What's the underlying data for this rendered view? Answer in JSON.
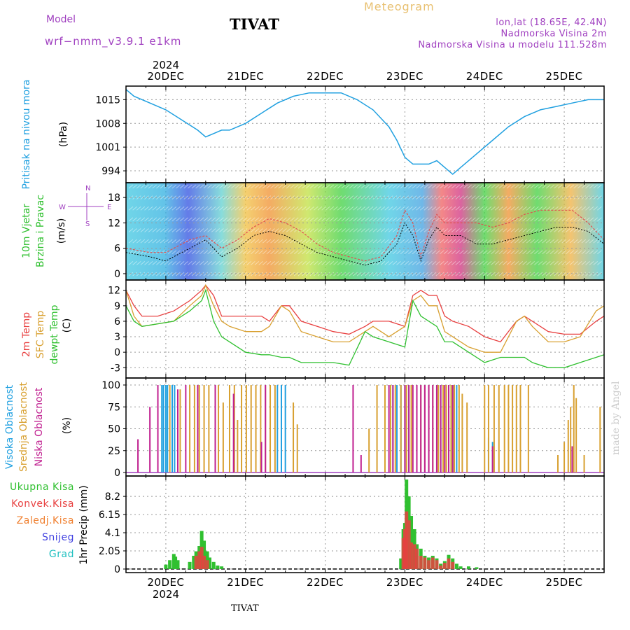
{
  "header": {
    "title": "TIVAT",
    "model_label": "Model",
    "model_name": "wrf−nmm_v3.9.1  e1km",
    "meteogram_label": "Meteogram",
    "info": [
      "lon,lat (18.65E, 42.4N)",
      "Nadmorska Visina 2m",
      "Nadmorska Visina u modelu 111.528m"
    ],
    "year": "2024"
  },
  "footer": {
    "station": "TIVAT",
    "watermark": "made by Angel"
  },
  "colors": {
    "pressure": "#20a0e0",
    "temp2m": "#e84040",
    "sfc": "#d8a030",
    "dewpt": "#30c030",
    "high": "#20a0e0",
    "mid": "#d8a030",
    "low": "#c02090",
    "precip": "#30c030",
    "konv": "#e84040",
    "label_pressure": "#20a0e0",
    "label_cloud_high": "#20a0e0",
    "label_cloud_mid": "#d8a030",
    "label_cloud_low": "#c02090",
    "label_snow": "#4040e0",
    "label_grad": "#20c0c0",
    "label_zaledj": "#f08030"
  },
  "chart_data": [
    {
      "type": "line",
      "panel": "pressure",
      "ylabel_name": "Pritisak na nivou mora",
      "ylabel_unit": "(hPa)",
      "yticks": [
        994,
        1001,
        1008,
        1015
      ],
      "ylim": [
        990.5,
        1019
      ],
      "x_categories": [
        "20DEC",
        "21DEC",
        "22DEC",
        "23DEC",
        "24DEC",
        "25DEC"
      ],
      "xlim": [
        -0.5,
        5.5
      ],
      "series": [
        {
          "x": [
            -0.5,
            -0.4,
            -0.2,
            0,
            0.2,
            0.4,
            0.5,
            0.6,
            0.7,
            0.8,
            1.0,
            1.2,
            1.4,
            1.6,
            1.8,
            2.0,
            2.2,
            2.4,
            2.6,
            2.8,
            2.9,
            3.0,
            3.1,
            3.2,
            3.3,
            3.4,
            3.5,
            3.6,
            3.7,
            3.9,
            4.1,
            4.3,
            4.5,
            4.7,
            4.9,
            5.1,
            5.3,
            5.5
          ],
          "values": [
            1018,
            1016,
            1014,
            1012,
            1009,
            1006,
            1004,
            1005,
            1006,
            1006,
            1008,
            1011,
            1014,
            1016,
            1017,
            1017,
            1017,
            1015,
            1012,
            1007,
            1003,
            998,
            996,
            996,
            996,
            997,
            995,
            993,
            995,
            999,
            1003,
            1007,
            1010,
            1012,
            1013,
            1014,
            1015,
            1015
          ]
        }
      ]
    },
    {
      "type": "line",
      "panel": "wind",
      "ylabel_name": "10m Vjetar",
      "ylabel_name2": "Brzina i Pravac",
      "ylabel_unit": "(m/s)",
      "compass": {
        "n": "N",
        "e": "E",
        "s": "S",
        "w": "W"
      },
      "yticks": [
        0,
        6,
        12,
        18
      ],
      "ylim": [
        -1.5,
        21.5
      ],
      "xlim": [
        -0.5,
        5.5
      ],
      "series": [
        {
          "style": "dashed-red",
          "x": [
            -0.5,
            -0.2,
            0,
            0.3,
            0.5,
            0.7,
            0.9,
            1.1,
            1.3,
            1.5,
            1.7,
            1.9,
            2.1,
            2.3,
            2.5,
            2.7,
            2.9,
            3.0,
            3.1,
            3.2,
            3.3,
            3.4,
            3.5,
            3.7,
            3.9,
            4.1,
            4.3,
            4.5,
            4.7,
            4.9,
            5.1,
            5.3,
            5.5
          ],
          "values": [
            6,
            5,
            5,
            8,
            9,
            6,
            8,
            11,
            13,
            12,
            10,
            7,
            5,
            4,
            3,
            4,
            9,
            15,
            12,
            4,
            10,
            14,
            12,
            12,
            12,
            11,
            12,
            14,
            15,
            15,
            15,
            12,
            8
          ]
        },
        {
          "style": "dotted-black",
          "x": [
            -0.5,
            -0.2,
            0,
            0.3,
            0.5,
            0.7,
            0.9,
            1.1,
            1.3,
            1.5,
            1.7,
            1.9,
            2.1,
            2.3,
            2.5,
            2.7,
            2.9,
            3.0,
            3.1,
            3.2,
            3.3,
            3.4,
            3.5,
            3.7,
            3.9,
            4.1,
            4.3,
            4.5,
            4.7,
            4.9,
            5.1,
            5.3,
            5.5
          ],
          "values": [
            5,
            4,
            3,
            6,
            8,
            4,
            6,
            9,
            10,
            9,
            7,
            5,
            4,
            3,
            2,
            3,
            7,
            12,
            9,
            3,
            8,
            11,
            9,
            9,
            7,
            7,
            8,
            9,
            10,
            11,
            11,
            10,
            7
          ]
        }
      ]
    },
    {
      "type": "line",
      "panel": "temperature",
      "ylabel_names": [
        "2m Temp",
        "SFC Temp",
        "dewpt Temp"
      ],
      "ylabel_unit": "(C)",
      "yticks": [
        -3,
        0,
        3,
        6,
        9,
        12
      ],
      "ylim": [
        -5,
        14
      ],
      "xlim": [
        -0.5,
        5.5
      ],
      "series": [
        {
          "name": "2m Temp",
          "x": [
            -0.5,
            -0.4,
            -0.3,
            -0.1,
            0.1,
            0.3,
            0.45,
            0.5,
            0.6,
            0.7,
            0.8,
            1.0,
            1.2,
            1.3,
            1.45,
            1.55,
            1.7,
            1.9,
            2.1,
            2.3,
            2.5,
            2.6,
            2.8,
            3.0,
            3.1,
            3.2,
            3.3,
            3.4,
            3.5,
            3.6,
            3.8,
            4.0,
            4.2,
            4.4,
            4.5,
            4.6,
            4.8,
            5.0,
            5.2,
            5.4,
            5.5
          ],
          "values": [
            12,
            9,
            7,
            7,
            8,
            10,
            12,
            13,
            11,
            7,
            7,
            7,
            7,
            6,
            9,
            9,
            6,
            5,
            4,
            3.5,
            5,
            6,
            6,
            5,
            11,
            12,
            11,
            11,
            7,
            6,
            5,
            3,
            2,
            6,
            7,
            6,
            4,
            3.5,
            3.5,
            6,
            7
          ]
        },
        {
          "name": "SFC Temp",
          "x": [
            -0.5,
            -0.4,
            -0.3,
            -0.1,
            0.1,
            0.3,
            0.45,
            0.5,
            0.6,
            0.7,
            0.8,
            1.0,
            1.2,
            1.3,
            1.45,
            1.55,
            1.7,
            1.9,
            2.1,
            2.3,
            2.5,
            2.6,
            2.8,
            3.0,
            3.1,
            3.2,
            3.3,
            3.4,
            3.5,
            3.6,
            3.8,
            4.0,
            4.2,
            4.4,
            4.5,
            4.6,
            4.8,
            5.0,
            5.2,
            5.4,
            5.5
          ],
          "values": [
            12,
            7,
            5,
            5.5,
            6,
            9,
            11,
            13,
            9,
            6,
            5,
            4,
            4,
            5,
            9,
            8,
            4,
            3,
            2,
            2,
            4,
            5,
            3,
            5,
            10,
            11,
            9,
            9,
            4,
            3,
            1,
            0,
            0,
            6,
            7,
            5,
            2,
            2,
            3,
            8,
            9
          ]
        },
        {
          "name": "dewpt Temp",
          "x": [
            -0.5,
            -0.4,
            -0.3,
            -0.1,
            0.1,
            0.3,
            0.45,
            0.5,
            0.6,
            0.7,
            0.8,
            1.0,
            1.2,
            1.3,
            1.45,
            1.55,
            1.7,
            1.9,
            2.1,
            2.3,
            2.5,
            2.6,
            2.8,
            3.0,
            3.1,
            3.2,
            3.3,
            3.4,
            3.5,
            3.6,
            3.8,
            4.0,
            4.2,
            4.4,
            4.5,
            4.6,
            4.8,
            5.0,
            5.2,
            5.4,
            5.5
          ],
          "values": [
            9,
            6,
            5,
            5.5,
            6,
            8,
            10,
            12,
            6,
            3,
            2,
            0,
            -0.5,
            -0.5,
            -1,
            -1,
            -2,
            -2,
            -2,
            -2.5,
            4,
            3,
            2,
            1,
            10,
            7,
            6,
            5,
            2,
            2,
            0,
            -2,
            -1,
            -1,
            -1,
            -2,
            -3,
            -3,
            -2,
            -1,
            -0.5
          ]
        }
      ]
    },
    {
      "type": "bar",
      "panel": "cloud",
      "ylabel_names": [
        "Visoka Oblacnost",
        "Srednja Oblacnost",
        "Niska Oblacnost"
      ],
      "ylabel_unit": "(%)",
      "yticks": [
        0,
        25,
        50,
        75,
        100
      ],
      "ylim": [
        -4,
        108
      ],
      "xlim": [
        -0.5,
        5.5
      ],
      "series": [
        {
          "name": "Visoka Oblacnost",
          "x": [
            -0.05,
            -0.03,
            0.0,
            0.02,
            0.08,
            0.11,
            1.4,
            1.45,
            1.5,
            2.85,
            2.9,
            2.95,
            3.0,
            3.05,
            3.4,
            3.45,
            3.55,
            3.6,
            3.65,
            4.05,
            4.1
          ],
          "values": [
            100,
            100,
            100,
            100,
            100,
            100,
            100,
            100,
            100,
            100,
            100,
            100,
            100,
            100,
            100,
            100,
            100,
            100,
            100,
            40,
            35
          ]
        },
        {
          "name": "Srednja Oblacnost",
          "x": [
            0.05,
            0.18,
            0.3,
            0.36,
            0.42,
            0.48,
            0.54,
            0.66,
            0.72,
            0.8,
            0.86,
            0.9,
            0.95,
            1.01,
            1.07,
            1.13,
            1.19,
            1.25,
            1.31,
            1.37,
            1.6,
            1.65,
            2.55,
            2.65,
            2.75,
            2.82,
            2.88,
            2.95,
            3.02,
            3.08,
            3.15,
            3.2,
            3.25,
            3.3,
            3.35,
            3.42,
            3.48,
            3.52,
            3.58,
            3.62,
            3.68,
            3.72,
            3.78,
            4.0,
            4.05,
            4.12,
            4.18,
            4.25,
            4.3,
            4.35,
            4.4,
            4.45,
            4.55,
            4.92,
            5.0,
            5.05,
            5.08,
            5.12,
            5.15,
            5.25,
            5.45
          ],
          "values": [
            100,
            95,
            100,
            100,
            100,
            100,
            100,
            100,
            80,
            100,
            100,
            60,
            100,
            100,
            100,
            100,
            100,
            100,
            100,
            100,
            80,
            55,
            50,
            100,
            100,
            100,
            100,
            100,
            100,
            100,
            100,
            100,
            100,
            100,
            100,
            100,
            100,
            100,
            100,
            100,
            100,
            90,
            80,
            100,
            100,
            100,
            100,
            100,
            100,
            100,
            100,
            100,
            100,
            20,
            35,
            60,
            75,
            100,
            85,
            20,
            75
          ]
        },
        {
          "name": "Niska Oblacnost",
          "x": [
            -0.35,
            -0.2,
            -0.1,
            0.15,
            0.25,
            0.4,
            0.62,
            0.85,
            1.2,
            1.25,
            2.35,
            2.45,
            2.8,
            2.85,
            3.0,
            3.05,
            3.1,
            3.15,
            3.2,
            3.25,
            3.3,
            3.35,
            3.4,
            3.45,
            3.5,
            3.55,
            3.6,
            4.1,
            5.1
          ],
          "values": [
            38,
            75,
            100,
            95,
            100,
            100,
            100,
            90,
            35,
            100,
            100,
            20,
            100,
            100,
            100,
            100,
            100,
            100,
            100,
            100,
            100,
            100,
            100,
            100,
            100,
            100,
            100,
            30,
            30
          ]
        }
      ]
    },
    {
      "type": "bar",
      "panel": "precip",
      "legend": [
        "Ukupna Kisa",
        "Konvek.Kisa",
        "Zaledj.Kisa",
        "Snijeg",
        "Grad"
      ],
      "ylabel_name": "1hr Precip (mm)",
      "yticks": [
        0,
        2.05,
        4.1,
        6.15,
        8.2
      ],
      "ylim": [
        -0.4,
        10.5
      ],
      "x_categories": [
        "20DEC",
        "21DEC",
        "22DEC",
        "23DEC",
        "24DEC",
        "25DEC"
      ],
      "xlim": [
        -0.5,
        5.5
      ],
      "series": [
        {
          "name": "Ukupna Kisa",
          "x": [
            0.0,
            0.05,
            0.1,
            0.12,
            0.15,
            0.3,
            0.35,
            0.38,
            0.42,
            0.45,
            0.48,
            0.52,
            0.55,
            0.6,
            0.65,
            0.7,
            2.95,
            2.98,
            3.0,
            3.02,
            3.05,
            3.08,
            3.12,
            3.15,
            3.2,
            3.25,
            3.3,
            3.35,
            3.4,
            3.45,
            3.5,
            3.55,
            3.6,
            3.65,
            3.7,
            3.8,
            3.9
          ],
          "values": [
            0.5,
            1.0,
            1.7,
            1.4,
            1.0,
            0.8,
            1.5,
            2.0,
            2.6,
            4.3,
            3.2,
            2.0,
            1.3,
            0.8,
            0.4,
            0.3,
            1.2,
            4.5,
            5.2,
            10.1,
            8.2,
            6.0,
            4.5,
            2.8,
            2.3,
            1.5,
            1.3,
            1.5,
            1.2,
            0.6,
            0.9,
            1.6,
            1.2,
            0.6,
            0.3,
            0.3,
            0.2
          ]
        },
        {
          "name": "Konvek.Kisa",
          "x": [
            0.38,
            0.42,
            0.45,
            0.48,
            0.52,
            2.98,
            3.0,
            3.02,
            3.05,
            3.08,
            3.12,
            3.15,
            3.2,
            3.25,
            3.3,
            3.35,
            3.4,
            3.45,
            3.5,
            3.55,
            3.6
          ],
          "values": [
            1.5,
            2.0,
            2.5,
            1.5,
            1.0,
            3.5,
            4.5,
            6.5,
            5.5,
            3.0,
            2.8,
            2.3,
            1.5,
            1.3,
            1.0,
            1.3,
            1.0,
            0.4,
            0.7,
            1.2,
            0.8
          ]
        }
      ]
    }
  ]
}
